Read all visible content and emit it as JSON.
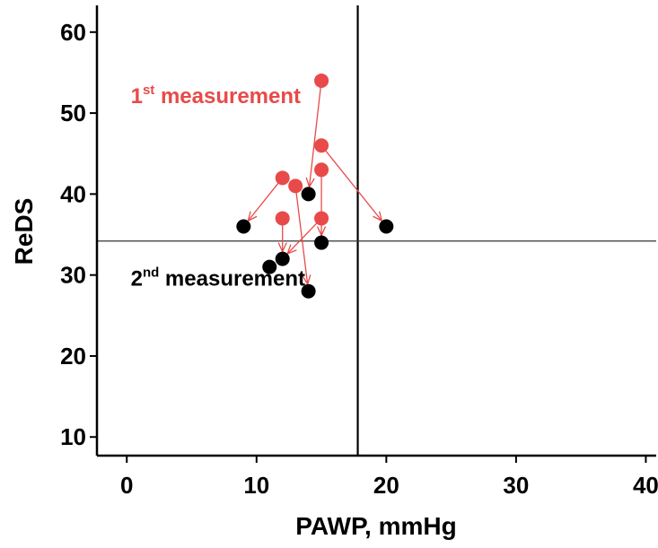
{
  "chart_data": {
    "type": "scatter",
    "xlabel": "PAWP, mmHg",
    "ylabel": "ReDS",
    "xlim": [
      -2.3,
      40.8
    ],
    "ylim": [
      7.7,
      63.3
    ],
    "xticks": [
      0,
      10,
      20,
      30,
      40
    ],
    "yticks": [
      10,
      20,
      30,
      40,
      50,
      60
    ],
    "reference_lines": {
      "x": 17.8,
      "y": 34.2
    },
    "colors": {
      "first": "#e84a4a",
      "second": "#000000",
      "arrow": "#e84a4a"
    },
    "series": [
      {
        "name": "1st measurement",
        "points": [
          {
            "x": 15,
            "y": 54
          },
          {
            "x": 15,
            "y": 46
          },
          {
            "x": 15,
            "y": 43
          },
          {
            "x": 12,
            "y": 42
          },
          {
            "x": 13,
            "y": 41
          },
          {
            "x": 12,
            "y": 37
          },
          {
            "x": 15,
            "y": 37
          }
        ]
      },
      {
        "name": "2nd measurement",
        "points": [
          {
            "x": 14,
            "y": 40
          },
          {
            "x": 9,
            "y": 36
          },
          {
            "x": 20,
            "y": 36
          },
          {
            "x": 15,
            "y": 34
          },
          {
            "x": 12,
            "y": 32
          },
          {
            "x": 11,
            "y": 31
          },
          {
            "x": 14,
            "y": 28
          }
        ]
      }
    ],
    "arrows": [
      {
        "from": {
          "x": 15,
          "y": 54
        },
        "to": {
          "x": 14,
          "y": 40
        }
      },
      {
        "from": {
          "x": 15,
          "y": 46
        },
        "to": {
          "x": 20,
          "y": 36
        }
      },
      {
        "from": {
          "x": 15,
          "y": 43
        },
        "to": {
          "x": 15,
          "y": 34
        }
      },
      {
        "from": {
          "x": 12,
          "y": 42
        },
        "to": {
          "x": 9,
          "y": 36
        }
      },
      {
        "from": {
          "x": 13,
          "y": 41
        },
        "to": {
          "x": 14,
          "y": 28
        }
      },
      {
        "from": {
          "x": 12,
          "y": 37
        },
        "to": {
          "x": 12,
          "y": 32
        }
      },
      {
        "from": {
          "x": 15,
          "y": 37
        },
        "to": {
          "x": 12,
          "y": 32
        }
      }
    ],
    "annotations": {
      "first": {
        "num": "1",
        "sup": "st",
        "text": " measurement",
        "x": 0.3,
        "y": 51.2
      },
      "second": {
        "num": "2",
        "sup": "nd",
        "text": " measurement",
        "x": 0.3,
        "y": 28.7
      }
    }
  }
}
